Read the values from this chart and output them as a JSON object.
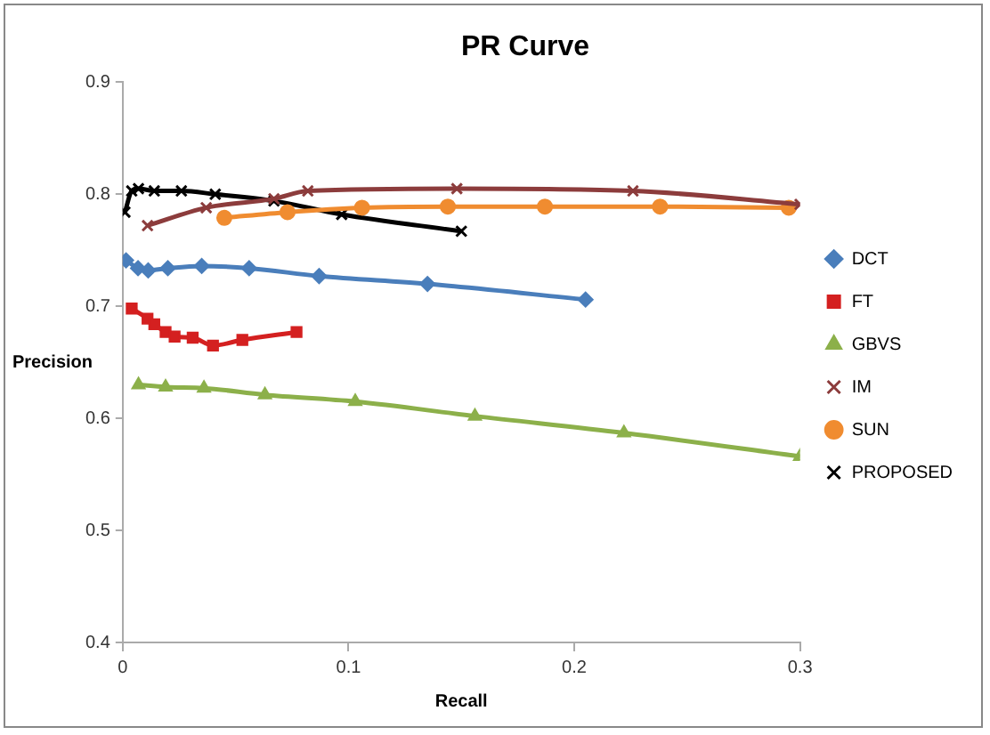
{
  "chart_data": {
    "type": "line",
    "title": "PR Curve",
    "xlabel": "Recall",
    "ylabel": "Precision",
    "xlim": [
      0,
      0.3
    ],
    "xticks": [
      0,
      0.1,
      0.2,
      0.3
    ],
    "ylim": [
      0.4,
      0.9
    ],
    "yticks": [
      0.4,
      0.5,
      0.6,
      0.7,
      0.8,
      0.9
    ],
    "grid": false,
    "legend": "right",
    "series": [
      {
        "name": "DCT",
        "color": "#4a7ebb",
        "marker": "diamond",
        "x": [
          0.0015,
          0.0068,
          0.0113,
          0.02,
          0.035,
          0.056,
          0.087,
          0.135,
          0.205
        ],
        "values": [
          0.741,
          0.734,
          0.732,
          0.734,
          0.736,
          0.734,
          0.727,
          0.72,
          0.706
        ]
      },
      {
        "name": "FT",
        "color": "#d42020",
        "marker": "square",
        "x": [
          0.004,
          0.011,
          0.014,
          0.019,
          0.023,
          0.031,
          0.04,
          0.053,
          0.077
        ],
        "values": [
          0.698,
          0.689,
          0.684,
          0.677,
          0.673,
          0.672,
          0.665,
          0.67,
          0.677
        ]
      },
      {
        "name": "GBVS",
        "color": "#8cb04a",
        "marker": "triangle",
        "x": [
          0.007,
          0.019,
          0.036,
          0.063,
          0.103,
          0.156,
          0.222,
          0.3
        ],
        "values": [
          0.63,
          0.628,
          0.627,
          0.621,
          0.615,
          0.602,
          0.587,
          0.566
        ]
      },
      {
        "name": "IM",
        "color": "#8c3c3c",
        "marker": "cross",
        "x": [
          0.011,
          0.037,
          0.067,
          0.082,
          0.148,
          0.226,
          0.3
        ],
        "values": [
          0.772,
          0.788,
          0.796,
          0.803,
          0.805,
          0.803,
          0.791
        ]
      },
      {
        "name": "SUN",
        "color": "#f08c30",
        "marker": "circle",
        "x": [
          0.045,
          0.073,
          0.106,
          0.144,
          0.187,
          0.238,
          0.295
        ],
        "values": [
          0.779,
          0.784,
          0.788,
          0.789,
          0.789,
          0.789,
          0.788
        ]
      },
      {
        "name": "PROPOSED",
        "color": "#000000",
        "marker": "cross",
        "x": [
          0.001,
          0.004,
          0.007,
          0.014,
          0.026,
          0.041,
          0.067,
          0.097,
          0.15
        ],
        "values": [
          0.784,
          0.803,
          0.805,
          0.803,
          0.803,
          0.8,
          0.794,
          0.782,
          0.767
        ]
      }
    ]
  }
}
